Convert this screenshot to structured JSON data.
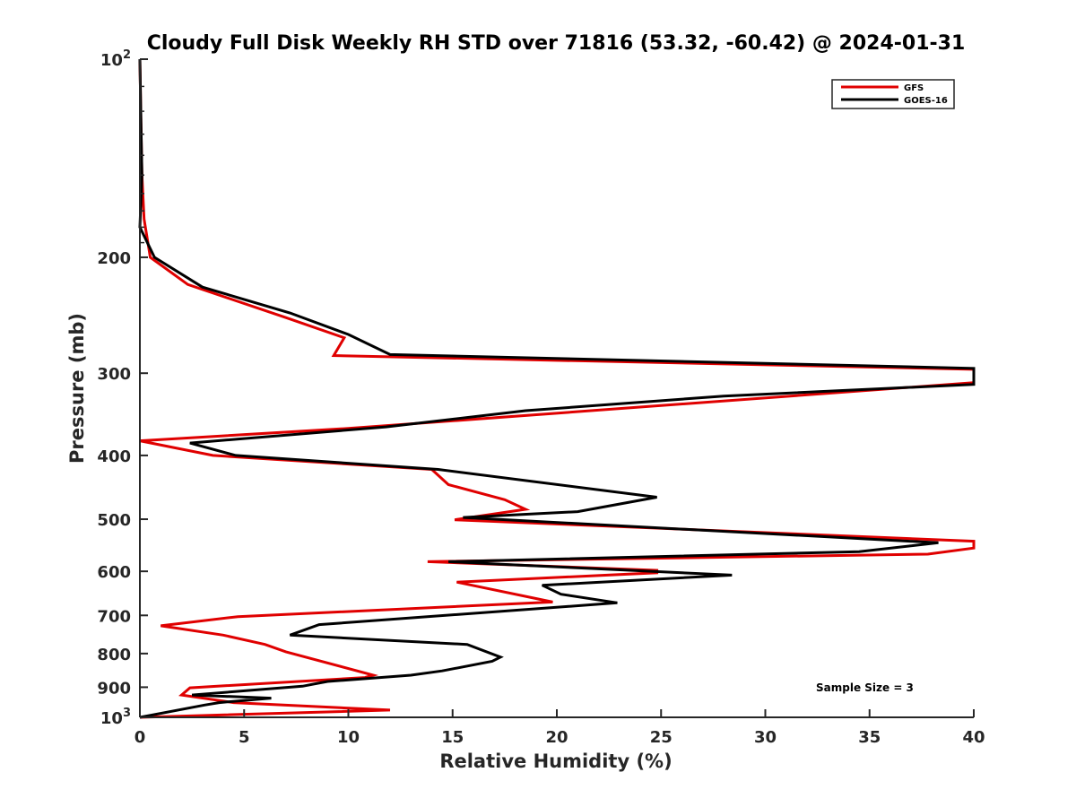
{
  "chart_data": {
    "type": "line",
    "title": "Cloudy Full Disk Weekly RH STD over 71816 (53.32, -60.42) @ 2024-01-31",
    "xlabel": "Relative Humidity (%)",
    "ylabel": "Pressure (mb)",
    "xlim": [
      0,
      40
    ],
    "ylim": [
      100,
      1000
    ],
    "y_scale": "log",
    "y_reversed": true,
    "x_ticks": [
      "0",
      "5",
      "10",
      "15",
      "20",
      "25",
      "30",
      "35",
      "40"
    ],
    "y_ticks": [
      {
        "value": 100,
        "base": "10",
        "exp": "2"
      },
      {
        "value": 200,
        "base": "200",
        "exp": ""
      },
      {
        "value": 300,
        "base": "300",
        "exp": ""
      },
      {
        "value": 400,
        "base": "400",
        "exp": ""
      },
      {
        "value": 500,
        "base": "500",
        "exp": ""
      },
      {
        "value": 600,
        "base": "600",
        "exp": ""
      },
      {
        "value": 700,
        "base": "700",
        "exp": ""
      },
      {
        "value": 800,
        "base": "800",
        "exp": ""
      },
      {
        "value": 900,
        "base": "900",
        "exp": ""
      },
      {
        "value": 1000,
        "base": "10",
        "exp": "3"
      }
    ],
    "grid": false,
    "legend_position": "top-right",
    "annotation": "Sample Size = 3",
    "series": [
      {
        "name": "GFS",
        "color": "#e00000",
        "points": [
          [
            0,
            100
          ],
          [
            0.05,
            125
          ],
          [
            0.1,
            150
          ],
          [
            0.2,
            175
          ],
          [
            0.5,
            200
          ],
          [
            2.3,
            220
          ],
          [
            7,
            247
          ],
          [
            9.8,
            265
          ],
          [
            9.3,
            282
          ],
          [
            40,
            296
          ],
          [
            40,
            310
          ],
          [
            25,
            336
          ],
          [
            10,
            364
          ],
          [
            0,
            380
          ],
          [
            3.5,
            400
          ],
          [
            14,
            420
          ],
          [
            14.8,
            443
          ],
          [
            17.5,
            467
          ],
          [
            18.5,
            483
          ],
          [
            15.1,
            501
          ],
          [
            40,
            540
          ],
          [
            40,
            553
          ],
          [
            37.8,
            565
          ],
          [
            13.8,
            580
          ],
          [
            24.8,
            598
          ],
          [
            24.8,
            603
          ],
          [
            15.2,
            623
          ],
          [
            19.8,
            668
          ],
          [
            4.7,
            703
          ],
          [
            1,
            726
          ],
          [
            4,
            750
          ],
          [
            6,
            775
          ],
          [
            7,
            795
          ],
          [
            11.2,
            863
          ],
          [
            10.8,
            870
          ],
          [
            2.4,
            902
          ],
          [
            2,
            925
          ],
          [
            4.5,
            950
          ],
          [
            12,
            975
          ],
          [
            0,
            1000
          ]
        ]
      },
      {
        "name": "GOES-16",
        "color": "#000000",
        "points": [
          [
            0,
            100
          ],
          [
            0.05,
            125
          ],
          [
            0.1,
            150
          ],
          [
            0,
            180
          ],
          [
            0.7,
            200
          ],
          [
            3,
            222
          ],
          [
            7.2,
            243
          ],
          [
            10,
            262
          ],
          [
            12,
            281
          ],
          [
            40,
            295
          ],
          [
            40,
            312
          ],
          [
            28,
            325
          ],
          [
            18.5,
            342
          ],
          [
            11.8,
            362
          ],
          [
            2.4,
            383
          ],
          [
            4.6,
            400
          ],
          [
            14.3,
            420
          ],
          [
            24.8,
            463
          ],
          [
            21,
            487
          ],
          [
            15.5,
            497
          ],
          [
            38.3,
            543
          ],
          [
            34.5,
            560
          ],
          [
            14.8,
            580
          ],
          [
            17.2,
            585
          ],
          [
            28.4,
            608
          ],
          [
            19.3,
            630
          ],
          [
            20.2,
            650
          ],
          [
            22.9,
            670
          ],
          [
            8.6,
            723
          ],
          [
            7.2,
            750
          ],
          [
            15.7,
            775
          ],
          [
            17.3,
            810
          ],
          [
            16.9,
            822
          ],
          [
            14.5,
            850
          ],
          [
            13,
            863
          ],
          [
            9,
            882
          ],
          [
            7.8,
            897
          ],
          [
            2.5,
            925
          ],
          [
            6.3,
            935
          ],
          [
            3.8,
            950
          ],
          [
            3.1,
            958
          ],
          [
            0,
            1000
          ]
        ]
      }
    ]
  }
}
